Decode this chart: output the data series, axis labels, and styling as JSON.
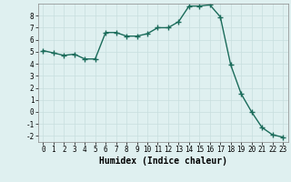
{
  "x": [
    0,
    1,
    2,
    3,
    4,
    5,
    6,
    7,
    8,
    9,
    10,
    11,
    12,
    13,
    14,
    15,
    16,
    17,
    18,
    19,
    20,
    21,
    22,
    23
  ],
  "y": [
    5.1,
    4.9,
    4.7,
    4.8,
    4.4,
    4.4,
    6.6,
    6.6,
    6.3,
    6.3,
    6.5,
    7.0,
    7.0,
    7.5,
    8.8,
    8.8,
    8.9,
    7.9,
    3.9,
    1.5,
    0.0,
    -1.3,
    -1.9,
    -2.1
  ],
  "line_color": "#1a6b5a",
  "marker": "+",
  "markersize": 4,
  "linewidth": 1.0,
  "xlabel": "Humidex (Indice chaleur)",
  "xlabel_fontsize": 7,
  "xlabel_fontfamily": "monospace",
  "xlabel_fontweight": "bold",
  "ylim": [
    -2.5,
    9.0
  ],
  "xlim": [
    -0.5,
    23.5
  ],
  "yticks": [
    -2,
    -1,
    0,
    1,
    2,
    3,
    4,
    5,
    6,
    7,
    8
  ],
  "xticks": [
    0,
    1,
    2,
    3,
    4,
    5,
    6,
    7,
    8,
    9,
    10,
    11,
    12,
    13,
    14,
    15,
    16,
    17,
    18,
    19,
    20,
    21,
    22,
    23
  ],
  "grid_color": "#c8dede",
  "bg_color": "#dff0f0",
  "tick_fontsize": 5.5,
  "fig_bg": "#dff0f0",
  "spine_color": "#888888"
}
